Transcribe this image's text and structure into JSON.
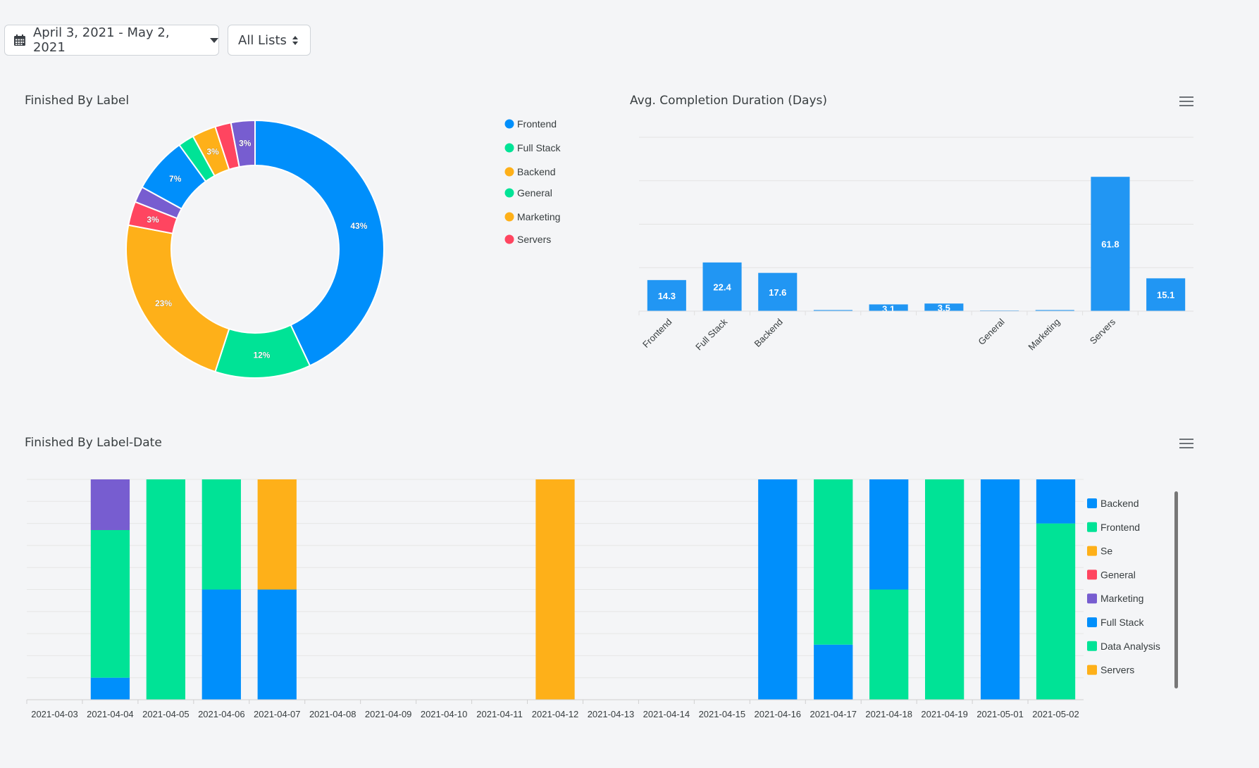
{
  "header": {
    "date_range": "April 3, 2021 - May 2, 2021",
    "list_filter": "All Lists"
  },
  "chart_data": [
    {
      "id": "donut",
      "type": "pie",
      "title": "Finished By Label",
      "labels": [
        "Frontend",
        "Full Stack",
        "Backend",
        "Servers",
        "Marketing",
        "Frontend",
        "General",
        "Backend",
        "Servers",
        "Marketing"
      ],
      "values": [
        43,
        12,
        23,
        3,
        2,
        7,
        2,
        3,
        2,
        3
      ],
      "data_labels": [
        "43%",
        "12%",
        "23%",
        "3%",
        "",
        "7%",
        "",
        "3%",
        "",
        "3%"
      ],
      "colors": [
        "#008ffb",
        "#00e396",
        "#feb019",
        "#ff4560",
        "#775dd0",
        "#008ffb",
        "#00e396",
        "#feb019",
        "#ff4560",
        "#775dd0"
      ],
      "legend": [
        {
          "label": "Frontend",
          "color": "#008ffb"
        },
        {
          "label": "Full Stack",
          "color": "#00e396"
        },
        {
          "label": "Backend",
          "color": "#feb019"
        },
        {
          "label": "General",
          "color": "#00e396"
        },
        {
          "label": "Marketing",
          "color": "#feb019"
        },
        {
          "label": "Servers",
          "color": "#ff4560"
        }
      ],
      "legend_position": "right"
    },
    {
      "id": "avg",
      "type": "bar",
      "title": "Avg. Completion Duration (Days)",
      "categories": [
        "Frontend",
        "Full Stack",
        "Backend",
        "",
        "",
        "",
        "General",
        "Marketing",
        "Servers",
        ""
      ],
      "values": [
        14.3,
        22.4,
        17.6,
        0.5,
        3.1,
        3.5,
        0.3,
        0.5,
        61.8,
        15.1
      ],
      "data_labels": [
        "14.3",
        "22.4",
        "17.6",
        "",
        "3.1",
        "3.5",
        "",
        "",
        "61.8",
        "15.1"
      ],
      "color": "#2196f3",
      "ylim": [
        0,
        80
      ]
    },
    {
      "id": "stacked",
      "type": "bar",
      "stacked": true,
      "title": "Finished By Label-Date",
      "categories": [
        "2021-04-03",
        "2021-04-04",
        "2021-04-05",
        "2021-04-06",
        "2021-04-07",
        "2021-04-08",
        "2021-04-09",
        "2021-04-10",
        "2021-04-11",
        "2021-04-12",
        "2021-04-13",
        "2021-04-14",
        "2021-04-15",
        "2021-04-16",
        "2021-04-17",
        "2021-04-18",
        "2021-04-19",
        "2021-05-01",
        "2021-05-02"
      ],
      "ylim": [
        0,
        10
      ],
      "series": [
        {
          "name": "Backend",
          "color": "#008ffb",
          "values": [
            0,
            1,
            0,
            5,
            5,
            0,
            0,
            0,
            0,
            0,
            0,
            0,
            0,
            10,
            2.5,
            0,
            0,
            10,
            0
          ]
        },
        {
          "name": "Frontend",
          "color": "#00e396",
          "values": [
            0,
            6.7,
            10,
            5,
            0,
            0,
            0,
            0,
            0,
            0,
            0,
            0,
            0,
            0,
            7.5,
            5,
            10,
            0,
            8
          ]
        },
        {
          "name": "Se",
          "color": "#feb019",
          "values": [
            0,
            0,
            0,
            0,
            5,
            0,
            0,
            0,
            0,
            10,
            0,
            0,
            0,
            0,
            0,
            0,
            0,
            0,
            0
          ]
        },
        {
          "name": "General",
          "color": "#ff4560",
          "values": [
            0,
            0,
            0,
            0,
            0,
            0,
            0,
            0,
            0,
            0,
            0,
            0,
            0,
            0,
            0,
            0,
            0,
            0,
            0
          ]
        },
        {
          "name": "Marketing",
          "color": "#775dd0",
          "values": [
            0,
            2.3,
            0,
            0,
            0,
            0,
            0,
            0,
            0,
            0,
            0,
            0,
            0,
            0,
            0,
            0,
            0,
            0,
            0
          ]
        },
        {
          "name": "Full Stack",
          "color": "#008ffb",
          "values": [
            0,
            0,
            0,
            0,
            0,
            0,
            0,
            0,
            0,
            0,
            0,
            0,
            0,
            0,
            0,
            5,
            0,
            0,
            2
          ]
        },
        {
          "name": "Data Analysis",
          "color": "#00e396",
          "values": [
            0,
            0,
            0,
            0,
            0,
            0,
            0,
            0,
            0,
            0,
            0,
            0,
            0,
            0,
            0,
            0,
            0,
            0,
            0
          ]
        },
        {
          "name": "Servers",
          "color": "#feb019",
          "values": [
            0,
            0,
            0,
            0,
            0,
            0,
            0,
            0,
            0,
            0,
            0,
            0,
            0,
            0,
            0,
            0,
            0,
            0,
            0
          ]
        }
      ],
      "legend_position": "right"
    }
  ]
}
